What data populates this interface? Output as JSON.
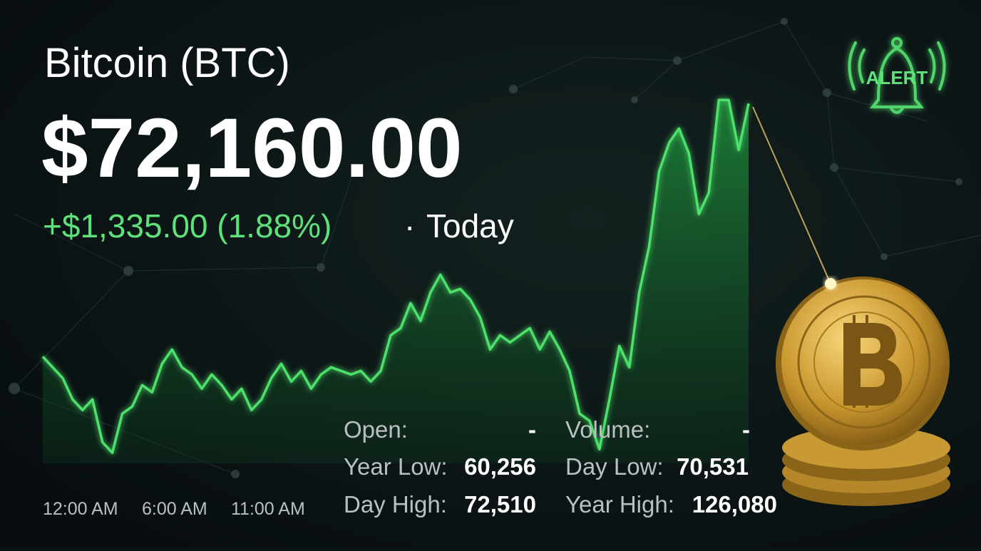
{
  "header": {
    "title": "Bitcoin (BTC)",
    "price": "$72,160.00",
    "change": "+$1,335.00 (1.88%)",
    "separator": "·",
    "period": "Today"
  },
  "alert": "ALERT",
  "time_labels": [
    "12:00 AM",
    "6:00 AM",
    "11:00 AM"
  ],
  "stats": [
    {
      "label": "Open:",
      "value": "-"
    },
    {
      "label": "Volume:",
      "value": "-"
    },
    {
      "label": "Year Low:",
      "value": "60,256"
    },
    {
      "label": "Day Low:",
      "value": "70,531"
    },
    {
      "label": "Day High:",
      "value": "72,510"
    },
    {
      "label": "Year High:",
      "value": "126,080"
    }
  ],
  "chart_data": {
    "type": "line",
    "color": "#4ee06a",
    "values": [
      71051,
      70991,
      70931,
      70811,
      70751,
      70811,
      70571,
      70511,
      70731,
      70771,
      70891,
      70851,
      71011,
      71091,
      70991,
      70951,
      70871,
      70951,
      70891,
      70811,
      70871,
      70751,
      70811,
      70931,
      71011,
      70911,
      70971,
      70871,
      70951,
      70991,
      70971,
      70951,
      70971,
      70911,
      70971,
      71171,
      71211,
      71351,
      71251,
      71411,
      71511,
      71411,
      71431,
      71371,
      71271,
      71091,
      71171,
      71131,
      71171,
      71211,
      71091,
      71191,
      71091,
      70971,
      70731,
      70691,
      70531,
      70811,
      71111,
      70991,
      71411,
      71671,
      72091,
      72251,
      72331,
      72191,
      71851,
      71971,
      72491,
      72491,
      72211,
      72471
    ],
    "ylim": [
      70400,
      72600
    ]
  }
}
